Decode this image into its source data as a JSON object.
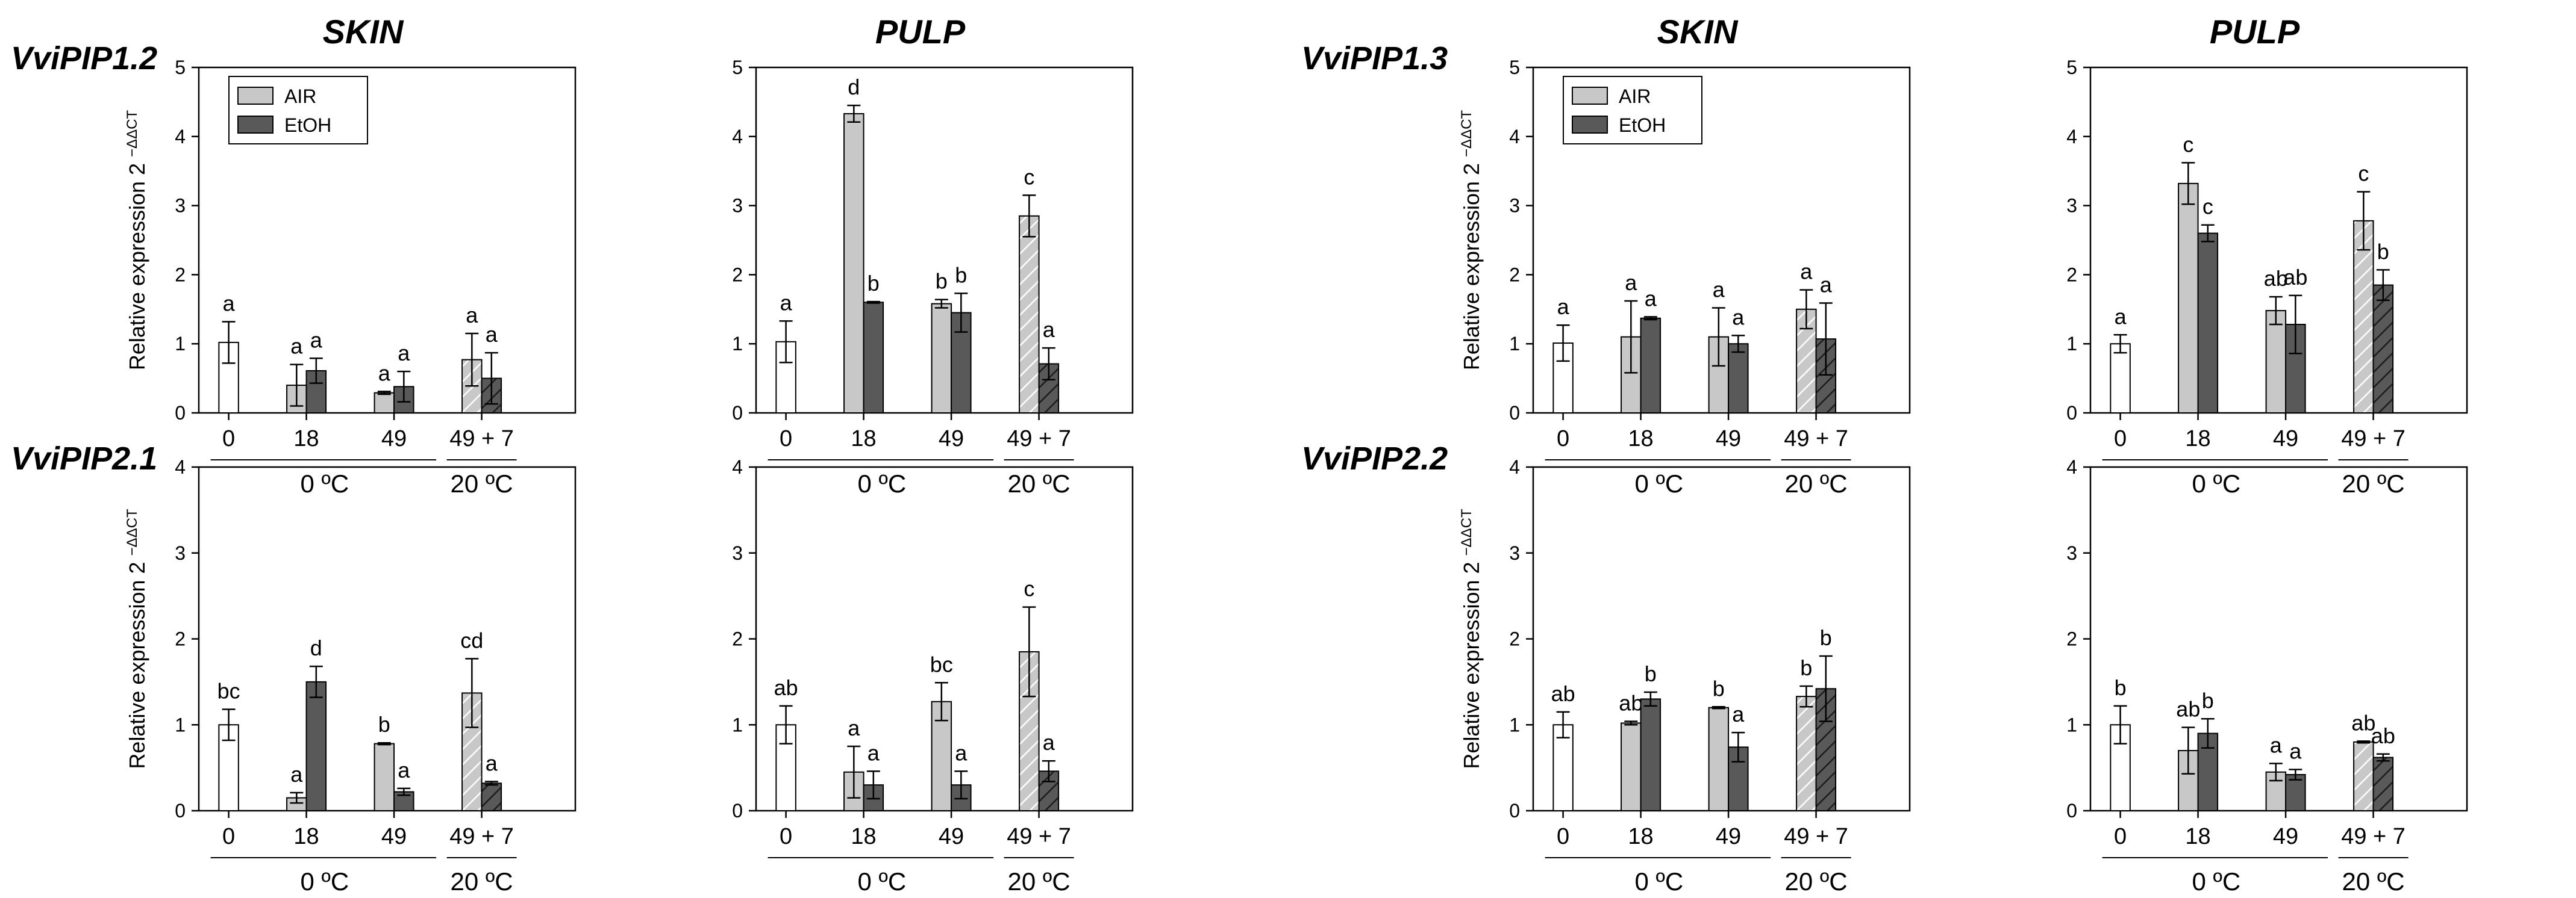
{
  "chart_data": [
    {
      "type": "bar",
      "gene": "VviPIP1.2",
      "tissue": "SKIN",
      "show_gene": true,
      "show_tissue": true,
      "show_ylabel": true,
      "show_legend": true,
      "ylim": [
        0,
        5
      ],
      "yticks": [
        0,
        1,
        2,
        3,
        4,
        5
      ],
      "bars": [
        {
          "cat": "0",
          "series": "0",
          "value": 1.02,
          "err": 0.3,
          "letter": "a"
        },
        {
          "cat": "18",
          "series": "AIR",
          "value": 0.4,
          "err": 0.3,
          "letter": "a"
        },
        {
          "cat": "18",
          "series": "EtOH",
          "value": 0.61,
          "err": 0.18,
          "letter": "a"
        },
        {
          "cat": "49",
          "series": "AIR",
          "value": 0.29,
          "err": 0.02,
          "letter": "a"
        },
        {
          "cat": "49",
          "series": "EtOH",
          "value": 0.38,
          "err": 0.22,
          "letter": "a"
        },
        {
          "cat": "49 + 7",
          "series": "AIR",
          "value": 0.77,
          "err": 0.38,
          "letter": "a"
        },
        {
          "cat": "49 + 7",
          "series": "EtOH",
          "value": 0.5,
          "err": 0.37,
          "letter": "a"
        }
      ]
    },
    {
      "type": "bar",
      "gene": "VviPIP1.2",
      "tissue": "PULP",
      "show_gene": false,
      "show_tissue": true,
      "show_ylabel": false,
      "show_legend": false,
      "ylim": [
        0,
        5
      ],
      "yticks": [
        0,
        1,
        2,
        3,
        4,
        5
      ],
      "bars": [
        {
          "cat": "0",
          "series": "0",
          "value": 1.03,
          "err": 0.3,
          "letter": "a"
        },
        {
          "cat": "18",
          "series": "AIR",
          "value": 4.33,
          "err": 0.12,
          "letter": "d"
        },
        {
          "cat": "18",
          "series": "EtOH",
          "value": 1.6,
          "err": 0.01,
          "letter": "b"
        },
        {
          "cat": "49",
          "series": "AIR",
          "value": 1.58,
          "err": 0.06,
          "letter": "b"
        },
        {
          "cat": "49",
          "series": "EtOH",
          "value": 1.45,
          "err": 0.28,
          "letter": "b"
        },
        {
          "cat": "49 + 7",
          "series": "AIR",
          "value": 2.85,
          "err": 0.3,
          "letter": "c"
        },
        {
          "cat": "49 + 7",
          "series": "EtOH",
          "value": 0.71,
          "err": 0.23,
          "letter": "a"
        }
      ]
    },
    {
      "type": "bar",
      "gene": "VviPIP1.3",
      "tissue": "SKIN",
      "show_gene": true,
      "show_tissue": true,
      "show_ylabel": true,
      "show_legend": true,
      "ylim": [
        0,
        5
      ],
      "yticks": [
        0,
        1,
        2,
        3,
        4,
        5
      ],
      "bars": [
        {
          "cat": "0",
          "series": "0",
          "value": 1.01,
          "err": 0.26,
          "letter": "a"
        },
        {
          "cat": "18",
          "series": "AIR",
          "value": 1.1,
          "err": 0.52,
          "letter": "a"
        },
        {
          "cat": "18",
          "series": "EtOH",
          "value": 1.37,
          "err": 0.02,
          "letter": "a"
        },
        {
          "cat": "49",
          "series": "AIR",
          "value": 1.1,
          "err": 0.42,
          "letter": "a"
        },
        {
          "cat": "49",
          "series": "EtOH",
          "value": 1.0,
          "err": 0.12,
          "letter": "a"
        },
        {
          "cat": "49 + 7",
          "series": "AIR",
          "value": 1.5,
          "err": 0.28,
          "letter": "a"
        },
        {
          "cat": "49 + 7",
          "series": "EtOH",
          "value": 1.07,
          "err": 0.52,
          "letter": "a"
        }
      ]
    },
    {
      "type": "bar",
      "gene": "VviPIP1.3",
      "tissue": "PULP",
      "show_gene": false,
      "show_tissue": true,
      "show_ylabel": false,
      "show_legend": false,
      "ylim": [
        0,
        5
      ],
      "yticks": [
        0,
        1,
        2,
        3,
        4,
        5
      ],
      "bars": [
        {
          "cat": "0",
          "series": "0",
          "value": 1.0,
          "err": 0.13,
          "letter": "a"
        },
        {
          "cat": "18",
          "series": "AIR",
          "value": 3.32,
          "err": 0.3,
          "letter": "c"
        },
        {
          "cat": "18",
          "series": "EtOH",
          "value": 2.6,
          "err": 0.12,
          "letter": "c"
        },
        {
          "cat": "49",
          "series": "AIR",
          "value": 1.48,
          "err": 0.2,
          "letter": "ab"
        },
        {
          "cat": "49",
          "series": "EtOH",
          "value": 1.28,
          "err": 0.42,
          "letter": "ab"
        },
        {
          "cat": "49 + 7",
          "series": "AIR",
          "value": 2.78,
          "err": 0.42,
          "letter": "c"
        },
        {
          "cat": "49 + 7",
          "series": "EtOH",
          "value": 1.85,
          "err": 0.22,
          "letter": "b"
        }
      ]
    },
    {
      "type": "bar",
      "gene": "VviPIP2.1",
      "tissue": "SKIN",
      "show_gene": true,
      "show_tissue": false,
      "show_ylabel": true,
      "show_legend": false,
      "ylim": [
        0,
        4
      ],
      "yticks": [
        0,
        1,
        2,
        3,
        4
      ],
      "bars": [
        {
          "cat": "0",
          "series": "0",
          "value": 1.0,
          "err": 0.18,
          "letter": "bc"
        },
        {
          "cat": "18",
          "series": "AIR",
          "value": 0.15,
          "err": 0.06,
          "letter": "a"
        },
        {
          "cat": "18",
          "series": "EtOH",
          "value": 1.5,
          "err": 0.18,
          "letter": "d"
        },
        {
          "cat": "49",
          "series": "AIR",
          "value": 0.78,
          "err": 0.01,
          "letter": "b"
        },
        {
          "cat": "49",
          "series": "EtOH",
          "value": 0.22,
          "err": 0.04,
          "letter": "a"
        },
        {
          "cat": "49 + 7",
          "series": "AIR",
          "value": 1.37,
          "err": 0.4,
          "letter": "cd"
        },
        {
          "cat": "49 + 7",
          "series": "EtOH",
          "value": 0.32,
          "err": 0.02,
          "letter": "a"
        }
      ]
    },
    {
      "type": "bar",
      "gene": "VviPIP2.1",
      "tissue": "PULP",
      "show_gene": false,
      "show_tissue": false,
      "show_ylabel": false,
      "show_legend": false,
      "ylim": [
        0,
        4
      ],
      "yticks": [
        0,
        1,
        2,
        3,
        4
      ],
      "bars": [
        {
          "cat": "0",
          "series": "0",
          "value": 1.0,
          "err": 0.22,
          "letter": "ab"
        },
        {
          "cat": "18",
          "series": "AIR",
          "value": 0.45,
          "err": 0.3,
          "letter": "a"
        },
        {
          "cat": "18",
          "series": "EtOH",
          "value": 0.3,
          "err": 0.16,
          "letter": "a"
        },
        {
          "cat": "49",
          "series": "AIR",
          "value": 1.27,
          "err": 0.22,
          "letter": "bc"
        },
        {
          "cat": "49",
          "series": "EtOH",
          "value": 0.3,
          "err": 0.16,
          "letter": "a"
        },
        {
          "cat": "49 + 7",
          "series": "AIR",
          "value": 1.85,
          "err": 0.52,
          "letter": "c"
        },
        {
          "cat": "49 + 7",
          "series": "EtOH",
          "value": 0.46,
          "err": 0.12,
          "letter": "a"
        }
      ]
    },
    {
      "type": "bar",
      "gene": "VviPIP2.2",
      "tissue": "SKIN",
      "show_gene": true,
      "show_tissue": false,
      "show_ylabel": true,
      "show_legend": false,
      "ylim": [
        0,
        4
      ],
      "yticks": [
        0,
        1,
        2,
        3,
        4
      ],
      "bars": [
        {
          "cat": "0",
          "series": "0",
          "value": 1.0,
          "err": 0.15,
          "letter": "ab"
        },
        {
          "cat": "18",
          "series": "AIR",
          "value": 1.02,
          "err": 0.02,
          "letter": "ab"
        },
        {
          "cat": "18",
          "series": "EtOH",
          "value": 1.3,
          "err": 0.08,
          "letter": "b"
        },
        {
          "cat": "49",
          "series": "AIR",
          "value": 1.2,
          "err": 0.01,
          "letter": "b"
        },
        {
          "cat": "49",
          "series": "EtOH",
          "value": 0.74,
          "err": 0.17,
          "letter": "a"
        },
        {
          "cat": "49 + 7",
          "series": "AIR",
          "value": 1.33,
          "err": 0.12,
          "letter": "b"
        },
        {
          "cat": "49 + 7",
          "series": "EtOH",
          "value": 1.42,
          "err": 0.38,
          "letter": "b"
        }
      ]
    },
    {
      "type": "bar",
      "gene": "VviPIP2.2",
      "tissue": "PULP",
      "show_gene": false,
      "show_tissue": false,
      "show_ylabel": false,
      "show_legend": false,
      "ylim": [
        0,
        4
      ],
      "yticks": [
        0,
        1,
        2,
        3,
        4
      ],
      "bars": [
        {
          "cat": "0",
          "series": "0",
          "value": 1.0,
          "err": 0.22,
          "letter": "b"
        },
        {
          "cat": "18",
          "series": "AIR",
          "value": 0.7,
          "err": 0.27,
          "letter": "ab"
        },
        {
          "cat": "18",
          "series": "EtOH",
          "value": 0.9,
          "err": 0.17,
          "letter": "b"
        },
        {
          "cat": "49",
          "series": "AIR",
          "value": 0.45,
          "err": 0.1,
          "letter": "a"
        },
        {
          "cat": "49",
          "series": "EtOH",
          "value": 0.42,
          "err": 0.06,
          "letter": "a"
        },
        {
          "cat": "49 + 7",
          "series": "AIR",
          "value": 0.8,
          "err": 0.01,
          "letter": "ab"
        },
        {
          "cat": "49 + 7",
          "series": "EtOH",
          "value": 0.62,
          "err": 0.04,
          "letter": "ab"
        }
      ]
    }
  ],
  "ylabel": "Relative expression 2",
  "ylabel_sup": "−ΔΔCT",
  "legend": [
    "AIR",
    "EtOH"
  ],
  "categories": [
    "0",
    "18",
    "49",
    "49 + 7"
  ],
  "group_labels": [
    "0 ºC",
    "20 ºC"
  ],
  "colors": {
    "control": "#ffffff",
    "air": "#c8c8c8",
    "etoh": "#595959",
    "axis": "#000000"
  }
}
